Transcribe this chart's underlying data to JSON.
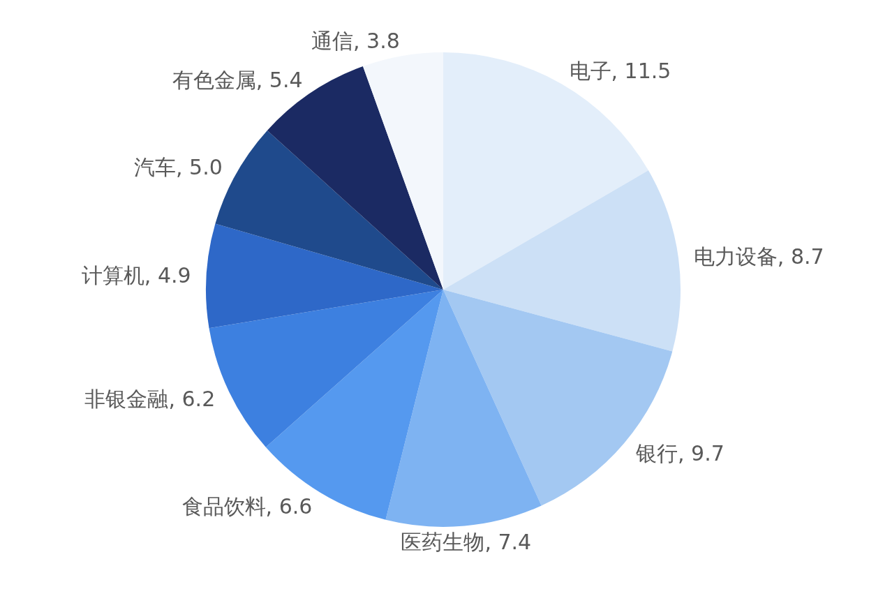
{
  "chart_data": {
    "type": "pie",
    "categories": [
      "电子",
      "电力设备",
      "银行",
      "医药生物",
      "食品饮料",
      "非银金融",
      "计算机",
      "汽车",
      "有色金属",
      "通信"
    ],
    "values": [
      11.5,
      8.7,
      9.7,
      7.4,
      6.6,
      6.2,
      4.9,
      5.0,
      5.4,
      3.8
    ],
    "colors": [
      "#e3eefa",
      "#cce0f6",
      "#a3c8f2",
      "#7eb3f2",
      "#5599ef",
      "#3d80e0",
      "#2e68c8",
      "#1f4a8c",
      "#1b2a63",
      "#f3f7fc"
    ],
    "value_labels": [
      ", 11.5",
      ", 8.7",
      ", 9.7",
      ", 7.4",
      ", 6.6",
      ", 6.2",
      ", 4.9",
      ", 5.0",
      ", 5.4",
      ", 3.8"
    ],
    "legend": false
  }
}
